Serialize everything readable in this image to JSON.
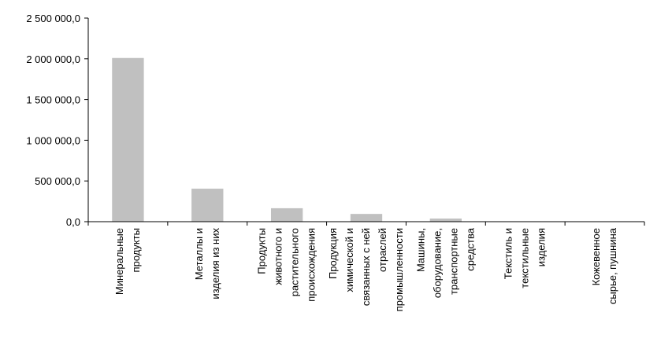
{
  "chart_data": {
    "type": "bar",
    "title": "",
    "xlabel": "",
    "ylabel": "",
    "ylim": [
      0,
      2500000
    ],
    "yticks": [
      0,
      500000,
      1000000,
      1500000,
      2000000,
      2500000
    ],
    "ytick_labels": [
      "0,0",
      "500 000,0",
      "1 000 000,0",
      "1 500 000,0",
      "2 000 000,0",
      "2 500 000,0"
    ],
    "grid": false,
    "legend": "none",
    "bar_color": "#c0c0c0",
    "categories": [
      [
        "Минеральные",
        "продукты"
      ],
      [
        "Металлы и",
        "изделия из них"
      ],
      [
        "Продукты",
        "животного и",
        "растительного",
        "происхождения"
      ],
      [
        "Продукция",
        "химической и",
        "связанных с ней",
        "отраслей",
        "промышленности"
      ],
      [
        "Машины,",
        "оборудование,",
        "транспортные",
        "средства"
      ],
      [
        "Текстиль и",
        "текстильные",
        "изделия"
      ],
      [
        "Кожевенное",
        "сырье, пушнина"
      ]
    ],
    "values": [
      2010000,
      405000,
      165000,
      95000,
      38000,
      5000,
      1500
    ]
  }
}
